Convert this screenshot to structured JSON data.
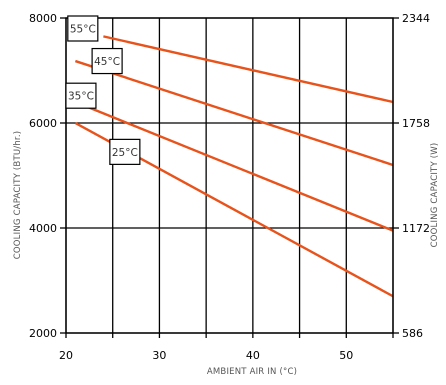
{
  "chart_data": {
    "type": "line",
    "xlabel": "AMBIENT AIR IN (°C)",
    "ylabel": "COOLING CAPACITY (BTU/hr.)",
    "ylabel_right": "COOLING CAPACITY (W)",
    "xlim": [
      20,
      55
    ],
    "ylim": [
      2000,
      8000
    ],
    "x_ticks": [
      20,
      30,
      40,
      50
    ],
    "x_grid": [
      20,
      25,
      30,
      35,
      40,
      45,
      50,
      55
    ],
    "y_ticks": [
      {
        "value": 2000,
        "label": "2000"
      },
      {
        "value": 4000,
        "label": "4000"
      },
      {
        "value": 6000,
        "label": "6000"
      },
      {
        "value": 8000,
        "label": "8000"
      }
    ],
    "y_ticks_right": [
      {
        "value": 2000,
        "label": "586"
      },
      {
        "value": 4000,
        "label": "1172"
      },
      {
        "value": 6000,
        "label": "1758"
      },
      {
        "value": 8000,
        "label": "2344"
      }
    ],
    "grid": true,
    "line_color": "#e8531c",
    "series": [
      {
        "name": "55°C",
        "x": [
          24,
          55
        ],
        "y": [
          7650,
          6400
        ],
        "label_at": [
          21.8,
          7800
        ]
      },
      {
        "name": "45°C",
        "x": [
          21,
          55
        ],
        "y": [
          7180,
          5200
        ],
        "label_at": [
          24.4,
          7180
        ]
      },
      {
        "name": "35°C",
        "x": [
          21,
          55
        ],
        "y": [
          6400,
          3950
        ],
        "label_at": [
          21.6,
          6520
        ]
      },
      {
        "name": "25°C",
        "x": [
          21,
          55
        ],
        "y": [
          6000,
          2700
        ],
        "label_at": [
          26.3,
          5450
        ]
      }
    ]
  }
}
